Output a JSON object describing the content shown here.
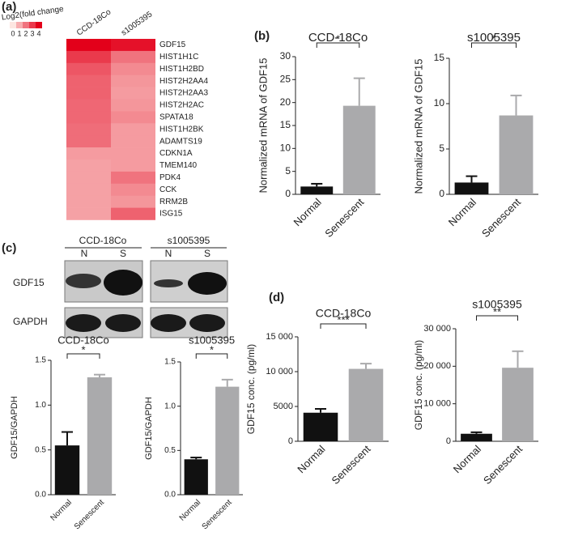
{
  "panels": [
    "(a)",
    "(b)",
    "(c)",
    "(d)"
  ],
  "blot": {
    "groups": [
      "CCD-18Co",
      "s1005395"
    ],
    "lanes": [
      "N",
      "S",
      "N",
      "S"
    ],
    "rows": [
      "GDF15",
      "GAPDH"
    ]
  },
  "chart_data": [
    {
      "type": "heatmap",
      "legend_title": "Log2(fold change",
      "zlim": [
        0,
        4
      ],
      "colorbar_ticks": [
        0,
        1,
        2,
        3,
        4
      ],
      "cmap": [
        "#fde6e1",
        "#e3001a"
      ],
      "columns": [
        "CCD-18Co",
        "s1005395"
      ],
      "rows": [
        "GDF15",
        "HIST1H1C",
        "HIST1H2BD",
        "HIST2H2AA4",
        "HIST2H2AA3",
        "HIST2H2AC",
        "SPATA18",
        "HIST1H2BK",
        "ADAMTS19",
        "CDKN1A",
        "TMEM140",
        "PDK4",
        "CCK",
        "RRM2B",
        "ISG15"
      ],
      "values": [
        [
          4,
          3.7
        ],
        [
          3,
          2
        ],
        [
          2.5,
          1.6
        ],
        [
          2.3,
          1.4
        ],
        [
          2.3,
          1.3
        ],
        [
          2.2,
          1.4
        ],
        [
          2.2,
          1.6
        ],
        [
          2.1,
          1.3
        ],
        [
          2.1,
          1.3
        ],
        [
          1.3,
          1.3
        ],
        [
          1.2,
          1.3
        ],
        [
          1.2,
          2
        ],
        [
          1.2,
          1.6
        ],
        [
          1.2,
          1.4
        ],
        [
          1.2,
          2.3
        ]
      ]
    },
    {
      "type": "bar",
      "title": "CCD-18Co",
      "ylabel": "Normalized mRNA of GDF15",
      "categories": [
        "Normal",
        "Senescent"
      ],
      "values": [
        1.7,
        19.3
      ],
      "errors": [
        0.6,
        6
      ],
      "colors": [
        "#111111",
        "#aaaaac"
      ],
      "significance": "*",
      "ylim": [
        0,
        30
      ],
      "yticks": [
        0,
        5,
        10,
        15,
        20,
        25,
        30
      ]
    },
    {
      "type": "bar",
      "title": "s1005395",
      "ylabel": "Normalized mRNA of GDF15",
      "categories": [
        "Normal",
        "Senescent"
      ],
      "values": [
        1.3,
        8.7
      ],
      "errors": [
        0.7,
        2.2
      ],
      "colors": [
        "#111111",
        "#aaaaac"
      ],
      "significance": "*",
      "ylim": [
        0,
        15
      ],
      "yticks": [
        0,
        5,
        10,
        15
      ]
    },
    {
      "type": "bar",
      "title": "CCD-18Co",
      "ylabel": "GDF15/GAPDH",
      "categories": [
        "Normal",
        "Senescent"
      ],
      "values": [
        0.55,
        1.31
      ],
      "errors": [
        0.15,
        0.03
      ],
      "colors": [
        "#111111",
        "#aaaaac"
      ],
      "significance": "*",
      "ylim": [
        0,
        1.5
      ],
      "yticks": [
        {
          "value": 0,
          "label": "0.0"
        },
        0.5,
        {
          "value": 1,
          "label": "1.0"
        },
        1.5
      ]
    },
    {
      "type": "bar",
      "title": "s1005395",
      "ylabel": "GDF15/GAPDH",
      "categories": [
        "Normal",
        "Senescent"
      ],
      "values": [
        0.4,
        1.22
      ],
      "errors": [
        0.02,
        0.08
      ],
      "colors": [
        "#111111",
        "#aaaaac"
      ],
      "significance": "*",
      "ylim": [
        0,
        1.5
      ],
      "yticks": [
        {
          "value": 0,
          "label": "0.0"
        },
        0.5,
        {
          "value": 1,
          "label": "1.0"
        },
        1.5
      ]
    },
    {
      "type": "bar",
      "title": "CCD-18Co",
      "ylabel": "GDF15 conc. (pg/ml)",
      "categories": [
        "Normal",
        "Senescent"
      ],
      "values": [
        4100,
        10400
      ],
      "errors": [
        550,
        750
      ],
      "colors": [
        "#111111",
        "#aaaaac"
      ],
      "significance": "***",
      "ylim": [
        0,
        15000
      ],
      "yticks": [
        0,
        5000,
        {
          "value": 10000,
          "label": "10 000"
        },
        {
          "value": 15000,
          "label": "15 000"
        }
      ]
    },
    {
      "type": "bar",
      "title": "s1005395",
      "ylabel": "GDF15 conc. (pg/ml)",
      "categories": [
        "Normal",
        "Senescent"
      ],
      "values": [
        2000,
        19600
      ],
      "errors": [
        400,
        4400
      ],
      "colors": [
        "#111111",
        "#aaaaac"
      ],
      "significance": "**",
      "ylim": [
        0,
        30000
      ],
      "yticks": [
        0,
        {
          "value": 10000,
          "label": "10 000"
        },
        {
          "value": 20000,
          "label": "20 000"
        },
        {
          "value": 30000,
          "label": "30 000"
        }
      ]
    }
  ]
}
